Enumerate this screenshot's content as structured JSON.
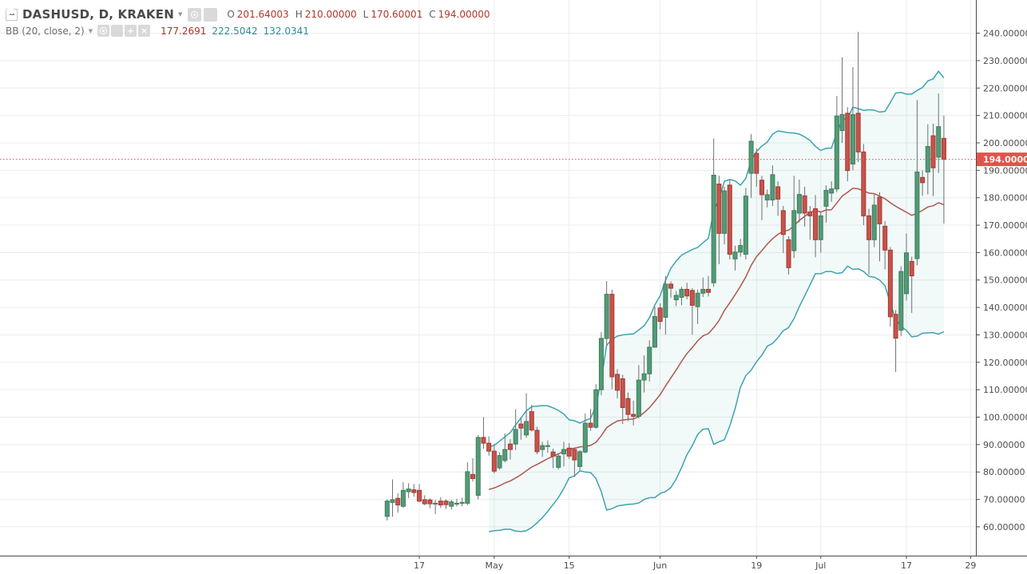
{
  "legend": {
    "title": "DASHUSD, D, KRAKEN",
    "ohlc": [
      {
        "k": "O",
        "v": "201.64003"
      },
      {
        "k": "H",
        "v": "210.00000"
      },
      {
        "k": "L",
        "v": "170.60001"
      },
      {
        "k": "C",
        "v": "194.00000"
      }
    ],
    "indicator": {
      "name": "BB (20, close, 2)",
      "values": [
        {
          "v": "177.2691",
          "type": "basis"
        },
        {
          "v": "222.5042",
          "type": "band"
        },
        {
          "v": "132.0341",
          "type": "band"
        }
      ]
    }
  },
  "chart_data": {
    "type": "candlestick",
    "title": "DASHUSD, D, KRAKEN",
    "xlabel": "",
    "ylabel": "",
    "ylim": [
      49.5,
      252.1
    ],
    "grid": true,
    "indicator": {
      "name": "Bollinger Bands",
      "period": 20,
      "source": "close",
      "stdev_mult": 2
    },
    "last_price": {
      "value": 194.0,
      "label": "194.00000"
    },
    "y_ticks": [
      {
        "p": 240,
        "label": "240.00000"
      },
      {
        "p": 230,
        "label": "230.00000"
      },
      {
        "p": 220,
        "label": "220.00000"
      },
      {
        "p": 210,
        "label": "210.00000"
      },
      {
        "p": 200,
        "label": "200.00000"
      },
      {
        "p": 190,
        "label": "190.00000"
      },
      {
        "p": 180,
        "label": "180.00000"
      },
      {
        "p": 170,
        "label": "170.00000"
      },
      {
        "p": 160,
        "label": "160.00000"
      },
      {
        "p": 150,
        "label": "150.00000"
      },
      {
        "p": 140,
        "label": "140.00000"
      },
      {
        "p": 130,
        "label": "130.00000"
      },
      {
        "p": 120,
        "label": "120.00000"
      },
      {
        "p": 110,
        "label": "110.00000"
      },
      {
        "p": 100,
        "label": "100.00000"
      },
      {
        "p": 90,
        "label": "90.00000"
      },
      {
        "p": 80,
        "label": "80.00000"
      },
      {
        "p": 70,
        "label": "70.00000"
      },
      {
        "p": 60,
        "label": "60.00000"
      }
    ],
    "x_ticks": [
      {
        "i": 6,
        "label": "17"
      },
      {
        "i": 20,
        "label": "May"
      },
      {
        "i": 34,
        "label": "15"
      },
      {
        "i": 51,
        "label": "Jun"
      },
      {
        "i": 69,
        "label": "19"
      },
      {
        "i": 81,
        "label": "Jul"
      },
      {
        "i": 97,
        "label": "17"
      },
      {
        "i": 109,
        "label": "29"
      }
    ],
    "columns": [
      "date",
      "open",
      "high",
      "low",
      "close"
    ],
    "candles": [
      [
        "Apr 11",
        63.8,
        70.0,
        62.3,
        69.4
      ],
      [
        "Apr 12",
        68.9,
        77.3,
        63.7,
        69.9
      ],
      [
        "Apr 13",
        70.4,
        72.2,
        65.2,
        68.0
      ],
      [
        "Apr 14",
        67.5,
        76.3,
        67.0,
        73.3
      ],
      [
        "Apr 15",
        72.8,
        75.9,
        70.5,
        73.8
      ],
      [
        "Apr 16",
        73.5,
        75.6,
        71.0,
        72.5
      ],
      [
        "Apr 17",
        73.3,
        75.6,
        68.9,
        69.4
      ],
      [
        "Apr 18",
        69.9,
        71.5,
        67.9,
        68.4
      ],
      [
        "Apr 19",
        69.8,
        70.4,
        66.8,
        68.4
      ],
      [
        "Apr 20",
        68.6,
        69.9,
        64.6,
        68.6
      ],
      [
        "Apr 21",
        69.4,
        70.8,
        66.9,
        68.0
      ],
      [
        "Apr 22",
        69.4,
        70.0,
        66.5,
        68.1
      ],
      [
        "Apr 23",
        67.5,
        69.8,
        66.3,
        69.1
      ],
      [
        "Apr 24",
        68.6,
        70.2,
        67.4,
        68.6
      ],
      [
        "Apr 25",
        68.9,
        70.6,
        67.5,
        68.9
      ],
      [
        "Apr 26",
        68.6,
        83.6,
        67.9,
        80.1
      ],
      [
        "Apr 27",
        79.1,
        85.0,
        76.5,
        77.6
      ],
      [
        "Apr 28",
        71.5,
        93.5,
        70.0,
        92.6
      ],
      [
        "Apr 29",
        92.6,
        100.0,
        88.5,
        90.5
      ],
      [
        "Apr 30",
        90.5,
        93.0,
        86.0,
        87.6
      ],
      [
        "May 1",
        87.6,
        90.2,
        79.5,
        80.3
      ],
      [
        "May 2",
        81.5,
        87.2,
        80.8,
        86.0
      ],
      [
        "May 3",
        84.2,
        94.1,
        83.5,
        88.2
      ],
      [
        "May 4",
        90.2,
        92.0,
        84.5,
        88.2
      ],
      [
        "May 5",
        90.2,
        102.9,
        88.0,
        95.5
      ],
      [
        "May 6",
        97.5,
        99.8,
        91.8,
        96.0
      ],
      [
        "May 7",
        93.5,
        108.7,
        92.5,
        98.4
      ],
      [
        "May 8",
        102.0,
        104.5,
        94.8,
        95.3
      ],
      [
        "May 9",
        95.2,
        96.5,
        86.5,
        87.4
      ],
      [
        "May 10",
        88.2,
        91.0,
        85.5,
        89.6
      ],
      [
        "May 11",
        89.6,
        91.5,
        87.0,
        89.6
      ],
      [
        "May 12",
        87.3,
        88.5,
        81.4,
        85.8
      ],
      [
        "May 13",
        81.7,
        86.8,
        80.9,
        85.8
      ],
      [
        "May 14",
        86.6,
        91.0,
        82.0,
        88.2
      ],
      [
        "May 15",
        88.7,
        90.5,
        84.8,
        85.8
      ],
      [
        "May 16",
        88.2,
        89.0,
        78.1,
        84.4
      ],
      [
        "May 17",
        82.0,
        88.0,
        80.6,
        87.4
      ],
      [
        "May 18",
        87.3,
        101.3,
        86.8,
        97.8
      ],
      [
        "May 19",
        97.8,
        103.0,
        95.0,
        96.3
      ],
      [
        "May 20",
        96.3,
        112.0,
        95.8,
        110.0
      ],
      [
        "May 21",
        110.0,
        131.0,
        108.0,
        128.7
      ],
      [
        "May 22",
        128.7,
        149.6,
        126.0,
        144.8
      ],
      [
        "May 23",
        144.8,
        146.5,
        110.2,
        114.7
      ],
      [
        "May 24",
        115.6,
        117.5,
        106.8,
        109.8
      ],
      [
        "May 25",
        114.0,
        115.5,
        97.5,
        103.5
      ],
      [
        "May 26",
        106.8,
        109.0,
        98.5,
        101.0
      ],
      [
        "May 27",
        101.0,
        106.0,
        97.0,
        100.3
      ],
      [
        "May 28",
        100.3,
        119.0,
        99.5,
        113.5
      ],
      [
        "May 29",
        113.5,
        122.5,
        109.0,
        115.8
      ],
      [
        "May 30",
        115.8,
        128.0,
        113.0,
        125.5
      ],
      [
        "May 31",
        125.5,
        140.3,
        125.3,
        136.7
      ],
      [
        "Jun 1",
        139.8,
        141.5,
        132.0,
        134.9
      ],
      [
        "Jun 2",
        136.4,
        151.4,
        130.1,
        148.5
      ],
      [
        "Jun 3",
        148.5,
        149.5,
        143.5,
        147.0
      ],
      [
        "Jun 4",
        142.8,
        146.0,
        140.5,
        144.4
      ],
      [
        "Jun 5",
        143.7,
        147.5,
        140.8,
        146.6
      ],
      [
        "Jun 6",
        146.6,
        149.0,
        143.0,
        144.2
      ],
      [
        "Jun 7",
        146.2,
        147.0,
        130.1,
        140.8
      ],
      [
        "Jun 8",
        140.3,
        146.5,
        134.0,
        145.2
      ],
      [
        "Jun 9",
        145.2,
        150.9,
        143.8,
        146.6
      ],
      [
        "Jun 10",
        146.6,
        151.5,
        144.0,
        145.5
      ],
      [
        "Jun 11",
        149.0,
        201.6,
        147.5,
        188.2
      ],
      [
        "Jun 12",
        185.0,
        188.0,
        155.8,
        167.0
      ],
      [
        "Jun 13",
        167.0,
        184.0,
        163.0,
        182.5
      ],
      [
        "Jun 14",
        184.6,
        186.5,
        157.5,
        159.4
      ],
      [
        "Jun 15",
        157.7,
        162.5,
        153.5,
        160.2
      ],
      [
        "Jun 16",
        160.2,
        165.0,
        158.5,
        162.6
      ],
      [
        "Jun 17",
        159.4,
        183.6,
        157.5,
        180.6
      ],
      [
        "Jun 18",
        188.9,
        203.2,
        180.0,
        200.6
      ],
      [
        "Jun 19",
        196.2,
        198.0,
        184.0,
        188.9
      ],
      [
        "Jun 20",
        186.4,
        188.0,
        171.8,
        181.1
      ],
      [
        "Jun 21",
        179.2,
        183.0,
        176.5,
        181.1
      ],
      [
        "Jun 22",
        179.2,
        191.8,
        177.0,
        188.4
      ],
      [
        "Jun 23",
        184.0,
        186.0,
        173.4,
        179.5
      ],
      [
        "Jun 24",
        175.3,
        177.0,
        159.8,
        166.6
      ],
      [
        "Jun 25",
        164.7,
        166.0,
        152.0,
        154.5
      ],
      [
        "Jun 26",
        160.7,
        188.0,
        158.0,
        175.3
      ],
      [
        "Jun 27",
        174.4,
        186.6,
        171.0,
        181.2
      ],
      [
        "Jun 28",
        180.7,
        184.0,
        169.5,
        174.4
      ],
      [
        "Jun 29",
        174.8,
        177.0,
        164.7,
        173.4
      ],
      [
        "Jun 30",
        176.0,
        181.0,
        158.3,
        164.7
      ],
      [
        "Jul 1",
        164.7,
        175.0,
        160.0,
        173.4
      ],
      [
        "Jul 2",
        176.9,
        184.5,
        170.9,
        182.7
      ],
      [
        "Jul 3",
        181.7,
        186.0,
        178.5,
        183.2
      ],
      [
        "Jul 4",
        183.2,
        217.1,
        182.0,
        209.8
      ],
      [
        "Jul 5",
        204.5,
        231.2,
        200.0,
        210.3
      ],
      [
        "Jul 6",
        210.8,
        213.0,
        186.0,
        189.9
      ],
      [
        "Jul 7",
        192.3,
        227.6,
        190.0,
        210.3
      ],
      [
        "Jul 8",
        210.8,
        240.5,
        193.0,
        196.7
      ],
      [
        "Jul 9",
        196.7,
        199.6,
        170.0,
        173.4
      ],
      [
        "Jul 10",
        173.4,
        176.0,
        152.0,
        164.7
      ],
      [
        "Jul 11",
        164.7,
        181.2,
        162.0,
        177.3
      ],
      [
        "Jul 12",
        180.2,
        182.0,
        156.8,
        170.5
      ],
      [
        "Jul 13",
        169.6,
        171.5,
        153.9,
        160.9
      ],
      [
        "Jul 14",
        160.9,
        162.0,
        133.0,
        136.6
      ],
      [
        "Jul 15",
        137.5,
        139.0,
        116.5,
        128.8
      ],
      [
        "Jul 16",
        131.7,
        155.0,
        129.6,
        153.1
      ],
      [
        "Jul 17",
        145.0,
        167.0,
        142.5,
        159.9
      ],
      [
        "Jul 18",
        156.8,
        158.5,
        138.0,
        151.5
      ],
      [
        "Jul 19",
        157.8,
        215.6,
        155.4,
        189.4
      ],
      [
        "Jul 20",
        187.4,
        190.0,
        180.7,
        185.5
      ],
      [
        "Jul 21",
        189.4,
        206.8,
        181.2,
        198.7
      ],
      [
        "Jul 22",
        202.6,
        207.0,
        180.6,
        190.9
      ],
      [
        "Jul 23",
        194.8,
        218.0,
        189.0,
        205.9
      ],
      [
        "Jul 24",
        201.64003,
        210.0,
        170.60001,
        194.0
      ]
    ],
    "colors": {
      "up": "#539b77",
      "up_border": "#3e7c5b",
      "down": "#c8534b",
      "down_border": "#a23a32",
      "wick": "#6f7071",
      "band": "#3fa3ad",
      "band_fill": "rgba(63,163,173,0.07)",
      "basis": "#b2564e",
      "last": "#e2544b",
      "grid": "#ececec",
      "axis_line": "#4a4a4a",
      "axis_text": "#4c4c4c"
    }
  }
}
